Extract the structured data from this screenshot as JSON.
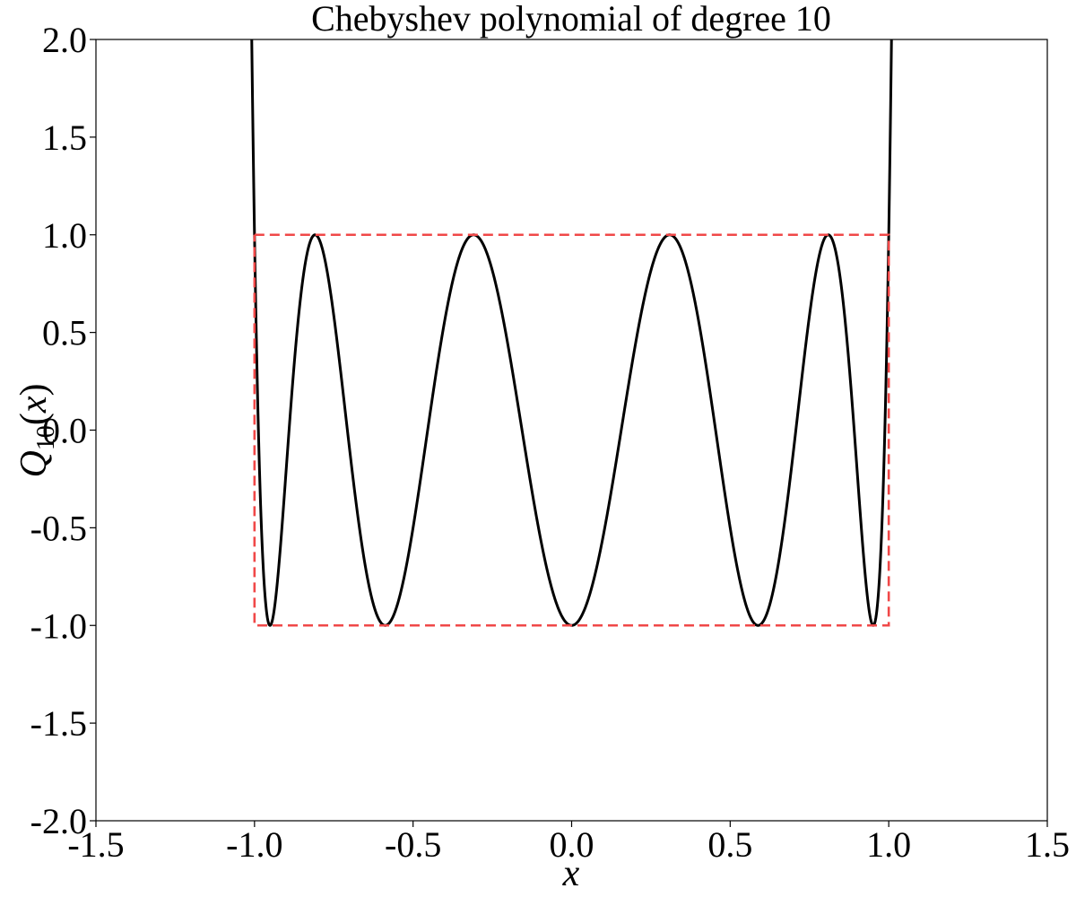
{
  "chart_data": {
    "type": "line",
    "title": "Chebyshev polynomial of degree 10",
    "xlabel": "x",
    "ylabel": {
      "base": "Q",
      "subscript": "10",
      "suffix": "(x)"
    },
    "xlim": [
      -1.5,
      1.5
    ],
    "ylim": [
      -2.0,
      2.0
    ],
    "grid": false,
    "xticks": [
      -1.5,
      -1.0,
      -0.5,
      0.0,
      0.5,
      1.0,
      1.5
    ],
    "xtick_labels": [
      "-1.5",
      "-1.0",
      "-0.5",
      "0.0",
      "0.5",
      "1.0",
      "1.5"
    ],
    "yticks": [
      -2.0,
      -1.5,
      -1.0,
      -0.5,
      0.0,
      0.5,
      1.0,
      1.5,
      2.0
    ],
    "ytick_labels": [
      "-2.0",
      "-1.5",
      "-1.0",
      "-0.5",
      "0.0",
      "0.5",
      "1.0",
      "1.5",
      "2.0"
    ],
    "series": [
      {
        "function": "T10(x) = 512x^10 - 1280x^8 + 1120x^6 - 400x^4 + 50x^2 - 1",
        "x_range": [
          -1.015,
          1.015
        ],
        "color": "#000000",
        "style": "solid"
      },
      {
        "x": [
          -1.0,
          1.0,
          1.0,
          -1.0,
          -1.0
        ],
        "y": [
          1.0,
          1.0,
          -1.0,
          -1.0,
          1.0
        ],
        "color": "#f04848",
        "style": "dashed"
      }
    ]
  }
}
